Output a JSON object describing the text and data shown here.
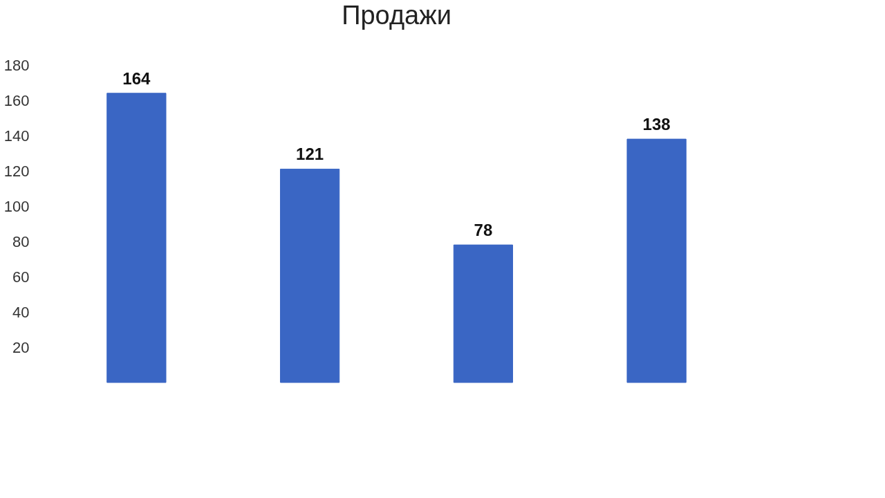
{
  "chart_data": {
    "type": "bar",
    "title": "Продажи",
    "categories": [
      null,
      null,
      null,
      null
    ],
    "values": [
      164,
      121,
      78,
      138
    ],
    "color": "#3a66c4",
    "ylim": [
      0,
      180
    ],
    "yticks": [
      20,
      40,
      60,
      80,
      100,
      120,
      140,
      160,
      180
    ],
    "data_labels": true,
    "grid": false
  }
}
